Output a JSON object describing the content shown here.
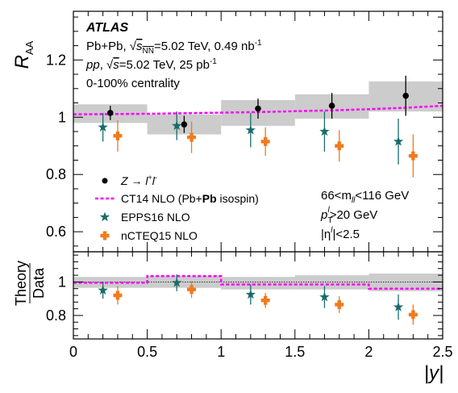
{
  "chart_data": {
    "type": "scatter",
    "bin_edges": [
      0,
      0.5,
      1.0,
      1.5,
      2.0,
      2.5
    ],
    "x_ticks": [
      "0",
      "0.5",
      "1",
      "1.5",
      "2",
      "2.5"
    ],
    "xlabel": "|y|",
    "xlim": [
      0,
      2.5
    ],
    "top_panel": {
      "ylabel": "R",
      "ylabel_sub": "AA",
      "ylim": [
        0.53,
        1.37
      ],
      "y_ticks": [
        {
          "value": 1.2,
          "label": "1.2"
        },
        {
          "value": 1.0,
          "label": "1"
        },
        {
          "value": 0.8,
          "label": "0.8"
        },
        {
          "value": 0.6,
          "label": "0.6"
        }
      ],
      "syst_bands": [
        {
          "lo": 0.98,
          "hi": 1.045
        },
        {
          "lo": 0.94,
          "hi": 1.01
        },
        {
          "lo": 0.97,
          "hi": 1.06
        },
        {
          "lo": 0.995,
          "hi": 1.08
        },
        {
          "lo": 1.02,
          "hi": 1.125
        }
      ],
      "series": [
        {
          "name": "Z → l⁺l⁻",
          "marker": "circle",
          "color": "#000000",
          "x": [
            0.25,
            0.75,
            1.25,
            1.75,
            2.25
          ],
          "y": [
            1.015,
            0.975,
            1.03,
            1.04,
            1.075
          ],
          "err": [
            0.025,
            0.03,
            0.035,
            0.045,
            0.07
          ]
        },
        {
          "name": "CT14 NLO (Pb+Pb isospin)",
          "marker": "dashed-line",
          "color": "#ff00ff",
          "x": [
            0.0,
            0.25,
            0.5,
            0.75,
            1.0,
            1.25,
            1.5,
            1.75,
            2.0,
            2.25,
            2.5
          ],
          "y": [
            1.01,
            1.011,
            1.012,
            1.014,
            1.016,
            1.018,
            1.021,
            1.024,
            1.028,
            1.033,
            1.04
          ]
        },
        {
          "name": "EPPS16 NLO",
          "marker": "star",
          "color": "#1a6b6b",
          "x": [
            0.2,
            0.7,
            1.2,
            1.7,
            2.2
          ],
          "y": [
            0.965,
            0.97,
            0.955,
            0.95,
            0.915
          ],
          "err": [
            0.05,
            0.05,
            0.06,
            0.07,
            0.08
          ]
        },
        {
          "name": "nCTEQ15 NLO",
          "marker": "plus",
          "color": "#f07a1e",
          "x": [
            0.3,
            0.8,
            1.3,
            1.8,
            2.3
          ],
          "y": [
            0.935,
            0.93,
            0.915,
            0.9,
            0.865
          ],
          "err": [
            0.055,
            0.055,
            0.05,
            0.055,
            0.075
          ]
        }
      ],
      "annotations": {
        "atlas": "ATLAS",
        "line1_a": "Pb+Pb, ",
        "line1_sqrt": "√",
        "line1_s": "s",
        "line1_sub": "NN",
        "line1_b": "=5.02 TeV, 0.49 nb",
        "line1_sup": "-1",
        "line2_pp": "pp",
        "line2_a": ", ",
        "line2_sqrt": "√",
        "line2_s": "s",
        "line2_b": "=5.02 TeV, 25 pb",
        "line2_sup": "-1",
        "line3": "0-100% centrality",
        "cut1_a": "66<m",
        "cut1_sub": "ll",
        "cut1_b": "<116 GeV",
        "cut2_a": "p",
        "cut2_sub": "T",
        "cut2_sup": "l",
        "cut2_b": ">20 GeV",
        "cut3_a": "|η",
        "cut3_sup": "l",
        "cut3_b": "|<2.5"
      },
      "legend": {
        "z_a": "Z → l",
        "z_sup1": "+",
        "z_b": "l",
        "z_sup2": "-",
        "ct14_a": "CT14 NLO (Pb+",
        "ct14_b": "Pb",
        "ct14_c": " isospin)",
        "epps": "EPPS16 NLO",
        "ncteq": "nCTEQ15 NLO"
      }
    },
    "bottom_panel": {
      "ylabel_num": "Theory",
      "ylabel_den": "Data",
      "ylim": [
        0.66,
        1.18
      ],
      "y_ticks": [
        {
          "value": 1.0,
          "label": "1"
        },
        {
          "value": 0.8,
          "label": "0.8"
        }
      ],
      "syst_bands": [
        {
          "lo": 0.965,
          "hi": 1.03
        },
        {
          "lo": 0.965,
          "hi": 1.035
        },
        {
          "lo": 0.955,
          "hi": 1.03
        },
        {
          "lo": 0.955,
          "hi": 1.04
        },
        {
          "lo": 0.945,
          "hi": 1.05
        }
      ],
      "reference_line": 1.0,
      "series": [
        {
          "name": "CT14 NLO (Pb+Pb isospin)",
          "marker": "dashed-step",
          "color": "#ff00ff",
          "bins": [
            0.995,
            1.035,
            0.985,
            0.985,
            0.96
          ]
        },
        {
          "name": "EPPS16 NLO",
          "marker": "star",
          "color": "#1a6b6b",
          "x": [
            0.2,
            0.7,
            1.2,
            1.7,
            2.2
          ],
          "y": [
            0.95,
            0.995,
            0.925,
            0.91,
            0.85
          ],
          "err": [
            0.05,
            0.05,
            0.06,
            0.065,
            0.075
          ]
        },
        {
          "name": "nCTEQ15 NLO",
          "marker": "plus",
          "color": "#f07a1e",
          "x": [
            0.3,
            0.8,
            1.3,
            1.8,
            2.3
          ],
          "y": [
            0.92,
            0.955,
            0.89,
            0.865,
            0.805
          ],
          "err": [
            0.055,
            0.05,
            0.045,
            0.05,
            0.06
          ]
        }
      ]
    }
  }
}
